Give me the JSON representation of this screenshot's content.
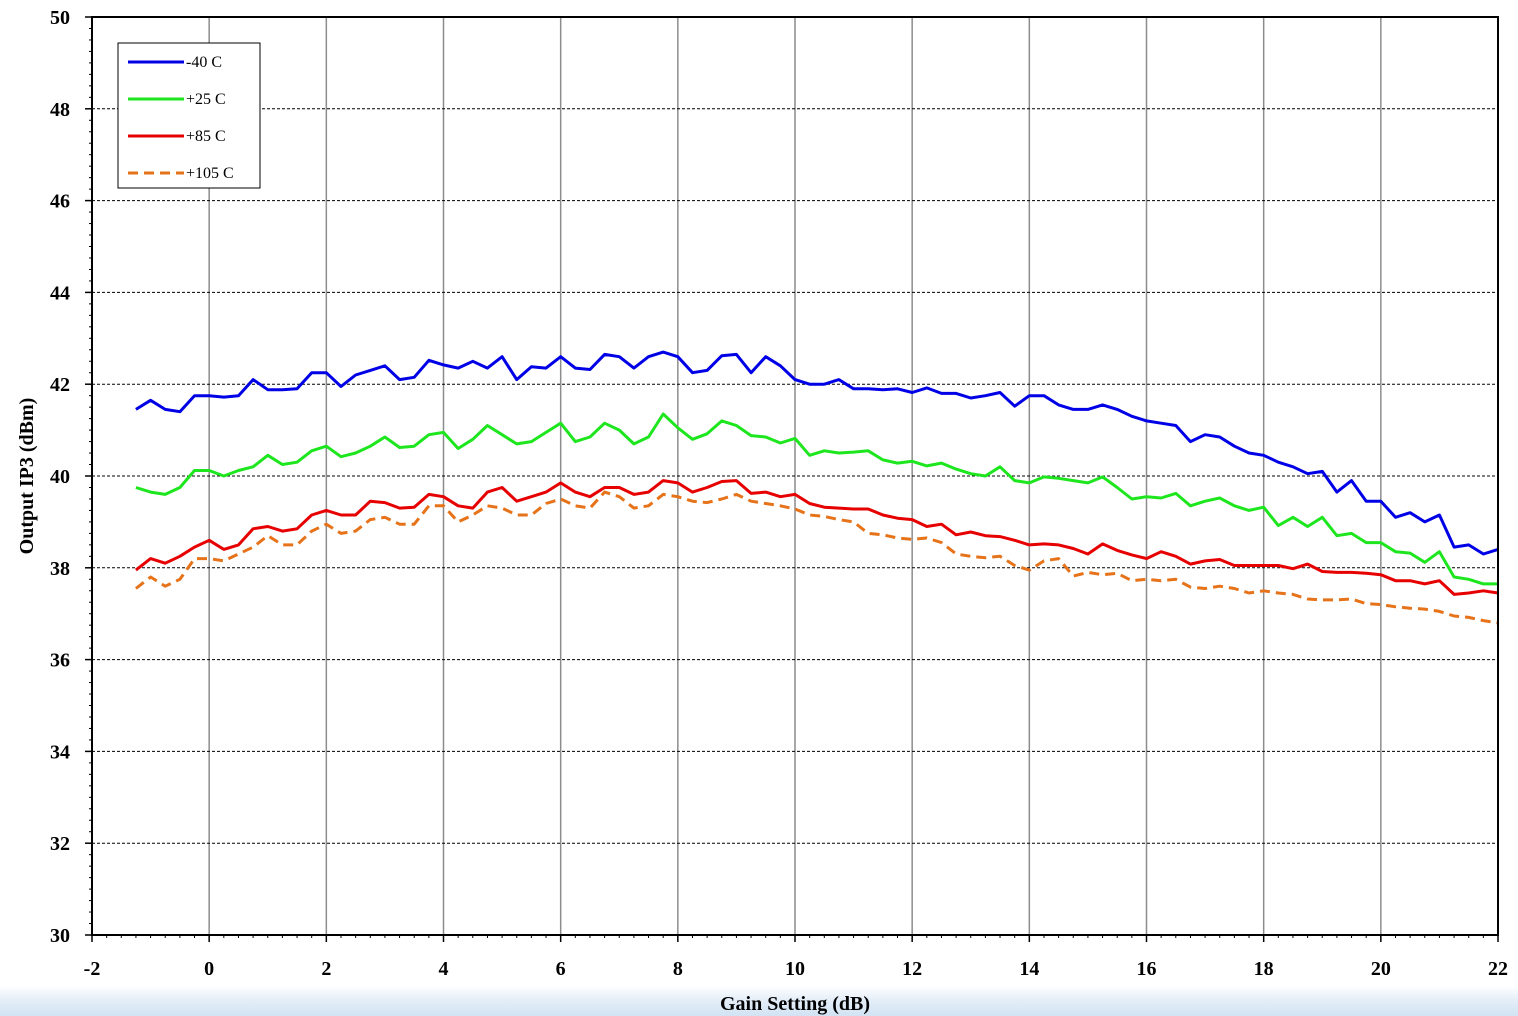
{
  "chart_data": {
    "type": "line",
    "xlabel": "Gain Setting (dB)",
    "ylabel": "Output IP3 (dBm)",
    "xlim": [
      -2,
      22
    ],
    "ylim": [
      30,
      50
    ],
    "xticks": [
      -2,
      0,
      2,
      4,
      6,
      8,
      10,
      12,
      14,
      16,
      18,
      20,
      22
    ],
    "yticks": [
      30,
      32,
      34,
      36,
      38,
      40,
      42,
      44,
      46,
      48,
      50
    ],
    "grid": {
      "vertical": "solid gray",
      "horizontal": "dashed black"
    },
    "legend": "top-left",
    "x_start": -1.25,
    "x_step": 0.25,
    "series": [
      {
        "name": "-40 C",
        "color": "#0000e6",
        "dashed": false,
        "values": [
          41.45,
          41.65,
          41.45,
          41.4,
          41.75,
          41.75,
          41.72,
          41.75,
          42.1,
          41.88,
          41.88,
          41.9,
          42.25,
          42.25,
          41.95,
          42.2,
          42.3,
          42.4,
          42.1,
          42.15,
          42.52,
          42.42,
          42.35,
          42.5,
          42.35,
          42.6,
          42.1,
          42.38,
          42.35,
          42.6,
          42.35,
          42.32,
          42.65,
          42.6,
          42.35,
          42.6,
          42.7,
          42.6,
          42.25,
          42.3,
          42.62,
          42.65,
          42.25,
          42.6,
          42.4,
          42.1,
          42.0,
          42.0,
          42.1,
          41.9,
          41.9,
          41.88,
          41.9,
          41.82,
          41.92,
          41.8,
          41.8,
          41.7,
          41.75,
          41.82,
          41.52,
          41.75,
          41.75,
          41.55,
          41.45,
          41.45,
          41.55,
          41.45,
          41.3,
          41.2,
          41.15,
          41.1,
          40.75,
          40.9,
          40.85,
          40.65,
          40.5,
          40.45,
          40.3,
          40.2,
          40.05,
          40.1,
          39.65,
          39.9,
          39.45,
          39.45,
          39.1,
          39.2,
          39.0,
          39.15,
          38.45,
          38.5,
          38.3,
          38.4
        ]
      },
      {
        "name": "+25 C",
        "color": "#1ee61e",
        "dashed": false,
        "values": [
          39.75,
          39.65,
          39.6,
          39.75,
          40.12,
          40.12,
          40.0,
          40.12,
          40.2,
          40.45,
          40.25,
          40.3,
          40.55,
          40.65,
          40.42,
          40.5,
          40.65,
          40.85,
          40.62,
          40.65,
          40.9,
          40.95,
          40.6,
          40.8,
          41.1,
          40.9,
          40.7,
          40.75,
          40.95,
          41.15,
          40.75,
          40.85,
          41.15,
          41.0,
          40.7,
          40.85,
          41.35,
          41.05,
          40.8,
          40.92,
          41.2,
          41.1,
          40.88,
          40.85,
          40.72,
          40.82,
          40.45,
          40.55,
          40.5,
          40.52,
          40.55,
          40.35,
          40.28,
          40.32,
          40.22,
          40.28,
          40.15,
          40.05,
          40.0,
          40.2,
          39.9,
          39.85,
          39.98,
          39.95,
          39.9,
          39.85,
          39.98,
          39.75,
          39.5,
          39.55,
          39.52,
          39.62,
          39.35,
          39.45,
          39.52,
          39.35,
          39.25,
          39.32,
          38.92,
          39.1,
          38.9,
          39.1,
          38.7,
          38.75,
          38.55,
          38.55,
          38.35,
          38.32,
          38.12,
          38.35,
          37.8,
          37.75,
          37.65,
          37.65
        ]
      },
      {
        "name": "+85 C",
        "color": "#e60000",
        "dashed": false,
        "values": [
          37.95,
          38.2,
          38.1,
          38.25,
          38.45,
          38.6,
          38.4,
          38.5,
          38.85,
          38.9,
          38.8,
          38.85,
          39.15,
          39.25,
          39.15,
          39.15,
          39.45,
          39.42,
          39.3,
          39.32,
          39.6,
          39.55,
          39.35,
          39.3,
          39.65,
          39.75,
          39.45,
          39.55,
          39.65,
          39.85,
          39.65,
          39.55,
          39.75,
          39.75,
          39.6,
          39.65,
          39.9,
          39.85,
          39.65,
          39.75,
          39.88,
          39.9,
          39.62,
          39.65,
          39.55,
          39.6,
          39.4,
          39.32,
          39.3,
          39.28,
          39.28,
          39.15,
          39.08,
          39.05,
          38.9,
          38.95,
          38.72,
          38.78,
          38.7,
          38.68,
          38.6,
          38.5,
          38.52,
          38.5,
          38.42,
          38.3,
          38.52,
          38.38,
          38.28,
          38.2,
          38.35,
          38.25,
          38.08,
          38.15,
          38.18,
          38.05,
          38.05,
          38.05,
          38.05,
          37.98,
          38.08,
          37.92,
          37.9,
          37.9,
          37.88,
          37.85,
          37.72,
          37.72,
          37.65,
          37.72,
          37.42,
          37.45,
          37.5,
          37.45
        ]
      },
      {
        "name": "+105 C",
        "color": "#e67319",
        "dashed": true,
        "values": [
          37.55,
          37.8,
          37.6,
          37.75,
          38.2,
          38.2,
          38.15,
          38.3,
          38.45,
          38.7,
          38.5,
          38.5,
          38.8,
          38.95,
          38.75,
          38.8,
          39.05,
          39.1,
          38.95,
          38.95,
          39.35,
          39.35,
          39.0,
          39.15,
          39.35,
          39.3,
          39.15,
          39.15,
          39.4,
          39.5,
          39.35,
          39.3,
          39.65,
          39.55,
          39.3,
          39.35,
          39.6,
          39.55,
          39.45,
          39.42,
          39.5,
          39.6,
          39.45,
          39.4,
          39.35,
          39.28,
          39.15,
          39.12,
          39.05,
          39.0,
          38.75,
          38.72,
          38.65,
          38.62,
          38.65,
          38.55,
          38.3,
          38.25,
          38.22,
          38.25,
          38.05,
          37.95,
          38.15,
          38.2,
          37.82,
          37.9,
          37.85,
          37.88,
          37.72,
          37.75,
          37.72,
          37.75,
          37.58,
          37.55,
          37.6,
          37.55,
          37.45,
          37.5,
          37.45,
          37.42,
          37.32,
          37.3,
          37.3,
          37.32,
          37.22,
          37.2,
          37.15,
          37.12,
          37.1,
          37.05,
          36.95,
          36.92,
          36.85,
          36.8
        ]
      }
    ]
  }
}
